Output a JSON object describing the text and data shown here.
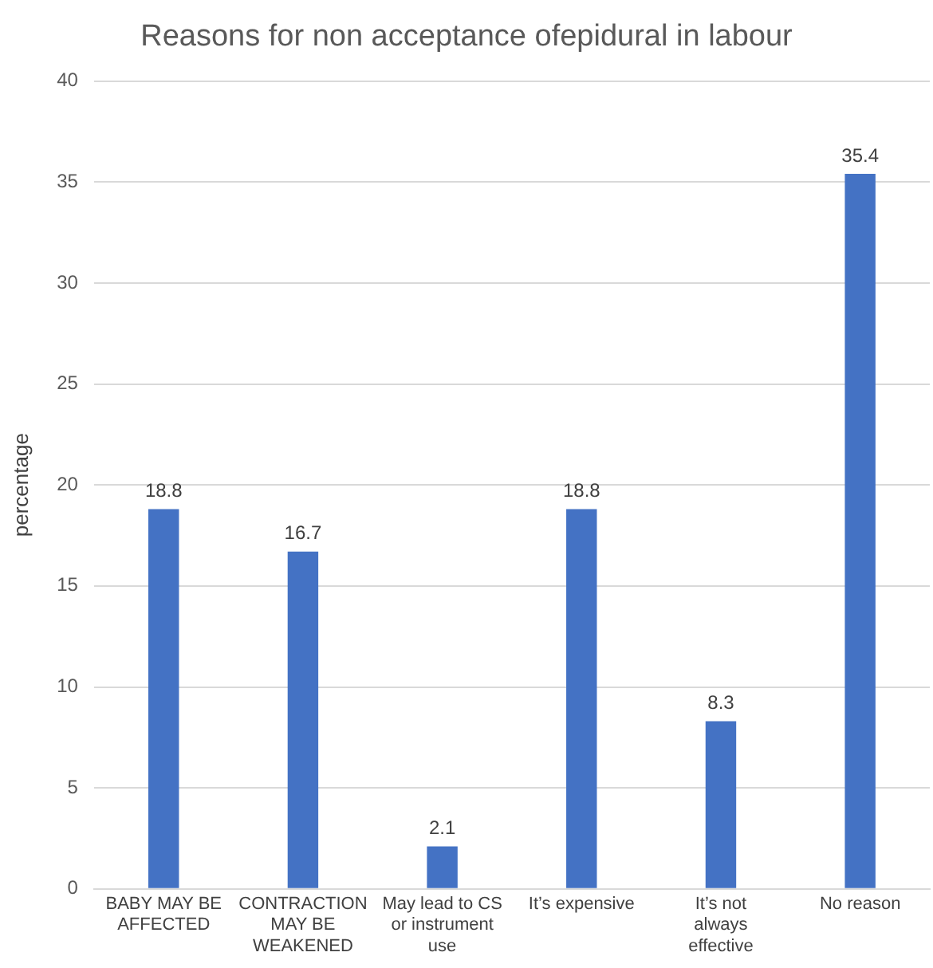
{
  "chart_data": {
    "type": "bar",
    "title": "Reasons for non acceptance ofepidural in labour",
    "ylabel": "percentage",
    "categories": [
      "BABY MAY BE AFFECTED",
      "CONTRACTION MAY BE WEAKENED",
      "May lead to CS or instrument use",
      "It’s expensive",
      "It’s not always effective",
      "No reason"
    ],
    "values": [
      18.8,
      16.7,
      2.1,
      18.8,
      8.3,
      35.4
    ],
    "color": "#4472c4",
    "ylim": [
      0,
      40
    ],
    "yticks": [
      0,
      5,
      10,
      15,
      20,
      25,
      30,
      35,
      40
    ],
    "grid": "y",
    "data_labels": true
  }
}
